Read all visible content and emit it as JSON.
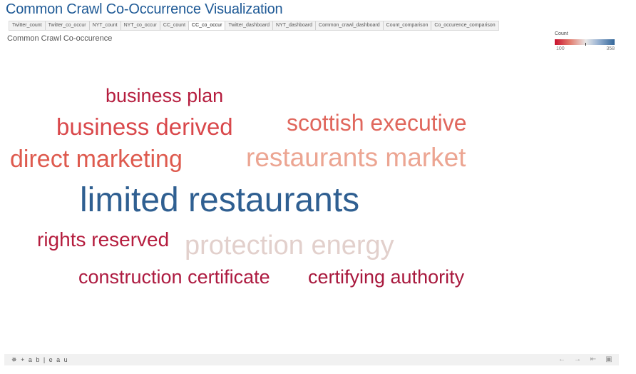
{
  "header": {
    "title": "Common Crawl Co-Occurrence Visualization"
  },
  "tabs": [
    "Twitter_count",
    "Twitter_co_occur",
    "NYT_count",
    "NYT_co_occur",
    "CC_count",
    "CC_co_occur",
    "Twitter_dashboard",
    "NYT_dashboard",
    "Common_crawl_dashboard",
    "Count_comparison",
    "Co_occurence_comparison"
  ],
  "active_tab": "CC_co_occur",
  "sheet": {
    "title": "Common Crawl Co-occurence"
  },
  "legend": {
    "title": "Count",
    "min": "100",
    "max": "358"
  },
  "words": [
    {
      "text": "business plan",
      "color": "#b51d3e"
    },
    {
      "text": "business derived",
      "color": "#d9484b"
    },
    {
      "text": "scottish executive",
      "color": "#e0675d"
    },
    {
      "text": "direct marketing",
      "color": "#de5a4e"
    },
    {
      "text": "restaurants market",
      "color": "#eca592"
    },
    {
      "text": "limited restaurants",
      "color": "#2f5f91"
    },
    {
      "text": "rights reserved",
      "color": "#b51d3e"
    },
    {
      "text": "protection energy",
      "color": "#e2d0cc"
    },
    {
      "text": "construction certificate",
      "color": "#ad1a40"
    },
    {
      "text": "certifying authority",
      "color": "#a8183d"
    }
  ],
  "footer": {
    "logo": "+ a b | e a u",
    "icons": [
      "undo-icon",
      "redo-icon",
      "revert-icon",
      "fullscreen-icon"
    ]
  }
}
